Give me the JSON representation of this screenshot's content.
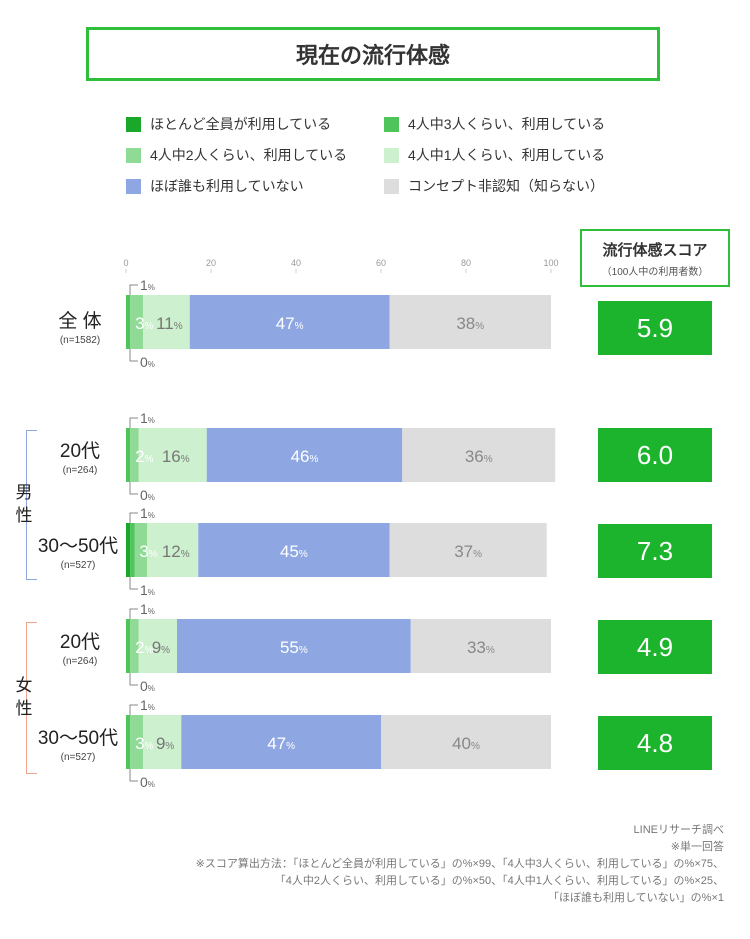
{
  "title": "現在の流行体感",
  "legend": [
    {
      "label": "ほとんど全員が利用している",
      "color": "#1aa82a"
    },
    {
      "label": "4人中3人くらい、利用している",
      "color": "#4ec45a"
    },
    {
      "label": "4人中2人くらい、利用している",
      "color": "#8fdb96"
    },
    {
      "label": "4人中1人くらい、利用している",
      "color": "#cdf0cf"
    },
    {
      "label": "ほぼ誰も利用していない",
      "color": "#8ea7e3"
    },
    {
      "label": "コンセプト非認知（知らない）",
      "color": "#dddddd"
    }
  ],
  "score_header": {
    "title": "流行体感スコア",
    "subtitle": "（100人中の利用者数）"
  },
  "groups": {
    "male": "男性",
    "female": "女性"
  },
  "footer": [
    "LINEリサーチ調べ",
    "※単一回答",
    "※スコア算出方法：「ほとんど全員が利用している」の%×99、「4人中3人くらい、利用している」の%×75、",
    "「4人中2人くらい、利用している」の%×50、「4人中1人くらい、利用している」の%×25、",
    "「ほぼ誰も利用していない」の%×1"
  ],
  "chart_data": {
    "type": "bar",
    "orientation": "horizontal",
    "stacked": true,
    "percent_unit": "%",
    "xlim": [
      0,
      100
    ],
    "x_ticks": [
      "0",
      "20",
      "40",
      "60",
      "80",
      "100"
    ],
    "series": [
      {
        "name": "ほとんど全員が利用している",
        "color": "#1aa82a"
      },
      {
        "name": "4人中3人くらい、利用している",
        "color": "#4ec45a"
      },
      {
        "name": "4人中2人くらい、利用している",
        "color": "#8fdb96"
      },
      {
        "name": "4人中1人くらい、利用している",
        "color": "#cdf0cf"
      },
      {
        "name": "ほぼ誰も利用していない",
        "color": "#8ea7e3"
      },
      {
        "name": "コンセプト非認知（知らない）",
        "color": "#dddddd"
      }
    ],
    "rows": [
      {
        "label": "全 体",
        "n": "(n=1582)",
        "values": [
          0,
          1,
          3,
          11,
          47,
          38
        ],
        "above": "1",
        "below": "0",
        "score": "5.9"
      },
      {
        "label": "20代",
        "n": "(n=264)",
        "values": [
          0,
          1,
          2,
          16,
          46,
          36
        ],
        "above": "1",
        "below": "0",
        "score": "6.0"
      },
      {
        "label": "30～50代",
        "n": "(n=527)",
        "values": [
          1,
          1,
          3,
          12,
          45,
          37
        ],
        "above": "1",
        "below": "1",
        "score": "7.3"
      },
      {
        "label": "20代",
        "n": "(n=264)",
        "values": [
          0,
          1,
          2,
          9,
          55,
          33
        ],
        "above": "1",
        "below": "0",
        "score": "4.9"
      },
      {
        "label": "30～50代",
        "n": "(n=527)",
        "values": [
          0,
          1,
          3,
          9,
          47,
          40
        ],
        "above": "1",
        "below": "0",
        "score": "4.8"
      }
    ]
  }
}
